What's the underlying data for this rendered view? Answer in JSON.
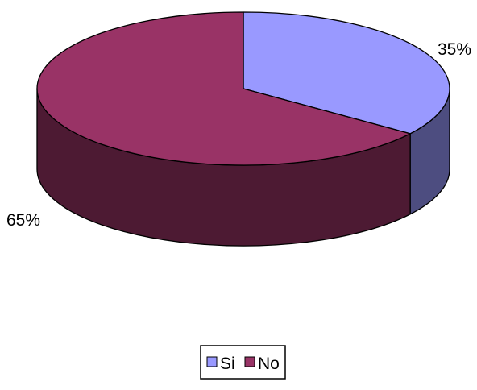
{
  "chart_data": {
    "type": "pie",
    "style": "3d",
    "categories": [
      "Si",
      "No"
    ],
    "values": [
      35,
      65
    ],
    "data_labels": [
      "35%",
      "65%"
    ],
    "colors": {
      "Si": {
        "top": "#9999FF",
        "side": "#4D4D80"
      },
      "No": {
        "top": "#993366",
        "side": "#4D1A33"
      }
    },
    "legend": {
      "placement": "bottom",
      "entries": [
        "Si",
        "No"
      ]
    },
    "title": ""
  }
}
